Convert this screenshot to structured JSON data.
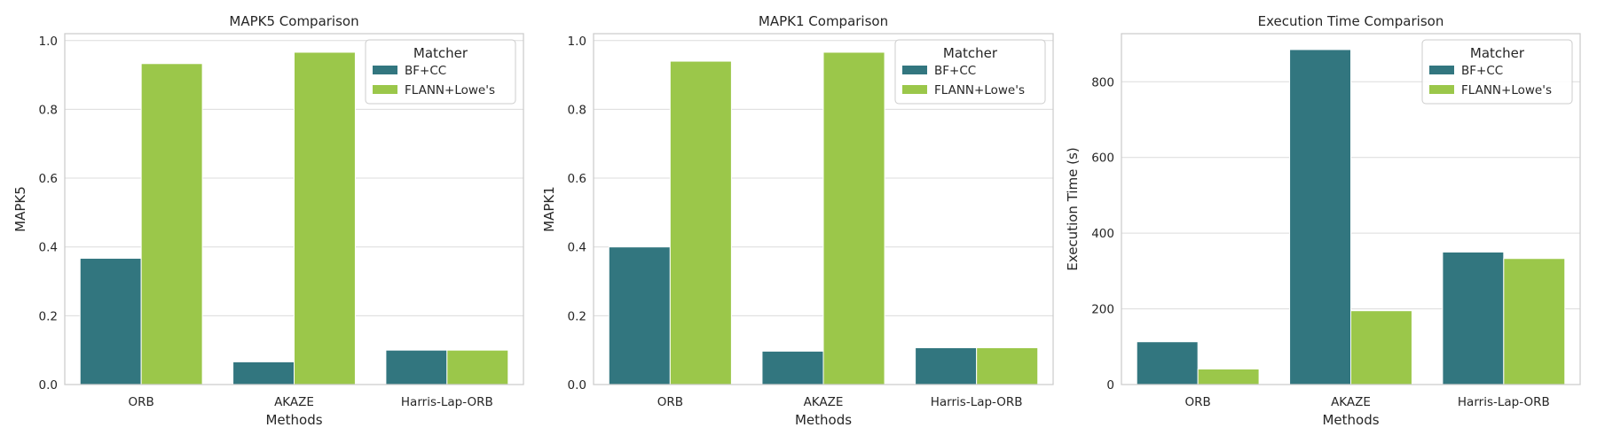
{
  "chart_data": [
    {
      "type": "bar",
      "title": "MAPK5 Comparison",
      "xlabel": "Methods",
      "ylabel": "MAPK5",
      "categories": [
        "ORB",
        "AKAZE",
        "Harris-Lap-ORB"
      ],
      "series": [
        {
          "name": "BF+CC",
          "values": [
            0.367,
            0.066,
            0.1
          ]
        },
        {
          "name": "FLANN+Lowe's",
          "values": [
            0.933,
            0.966,
            0.1
          ]
        }
      ],
      "ylim": [
        0,
        1.02
      ],
      "yticks": [
        0.0,
        0.2,
        0.4,
        0.6,
        0.8,
        1.0
      ],
      "ytick_decimals": 1,
      "legend_title": "Matcher",
      "legend_position": "top-right",
      "grid": true
    },
    {
      "type": "bar",
      "title": "MAPK1 Comparison",
      "xlabel": "Methods",
      "ylabel": "MAPK1",
      "categories": [
        "ORB",
        "AKAZE",
        "Harris-Lap-ORB"
      ],
      "series": [
        {
          "name": "BF+CC",
          "values": [
            0.4,
            0.097,
            0.107
          ]
        },
        {
          "name": "FLANN+Lowe's",
          "values": [
            0.94,
            0.966,
            0.107
          ]
        }
      ],
      "ylim": [
        0,
        1.02
      ],
      "yticks": [
        0.0,
        0.2,
        0.4,
        0.6,
        0.8,
        1.0
      ],
      "ytick_decimals": 1,
      "legend_title": "Matcher",
      "legend_position": "top-right",
      "grid": true
    },
    {
      "type": "bar",
      "title": "Execution Time Comparison",
      "xlabel": "Methods",
      "ylabel": "Execution Time (s)",
      "categories": [
        "ORB",
        "AKAZE",
        "Harris-Lap-ORB"
      ],
      "series": [
        {
          "name": "BF+CC",
          "values": [
            113,
            885,
            350
          ]
        },
        {
          "name": "FLANN+Lowe's",
          "values": [
            41,
            195,
            333
          ]
        }
      ],
      "ylim": [
        0,
        927
      ],
      "yticks": [
        0,
        200,
        400,
        600,
        800
      ],
      "ytick_decimals": 0,
      "legend_title": "Matcher",
      "legend_position": "top-right",
      "grid": true
    }
  ],
  "colors": {
    "BF+CC": "#32767f",
    "FLANN+Lowe's": "#9bc74a"
  }
}
